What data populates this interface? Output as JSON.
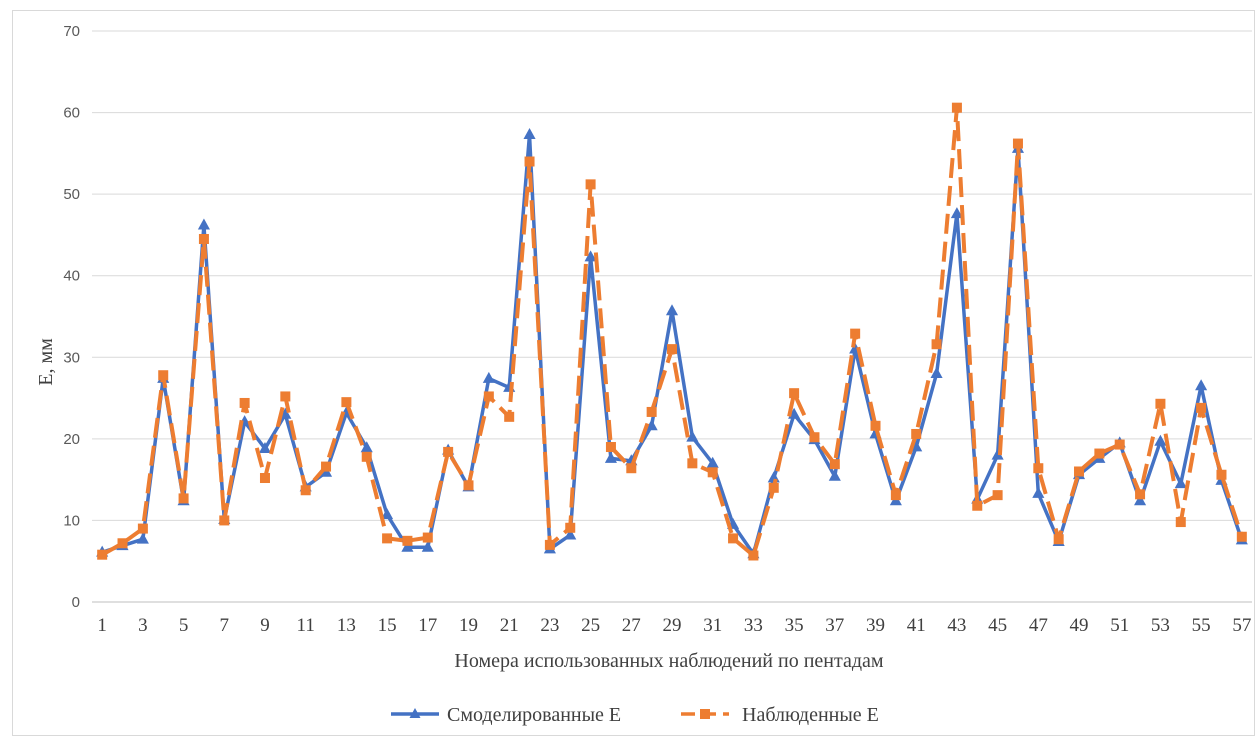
{
  "chart_data": {
    "type": "line",
    "title": "",
    "xlabel": "Номера использованных наблюдений по пентадам",
    "ylabel": "E, мм",
    "ylim": [
      0,
      70
    ],
    "yticks": [
      0,
      10,
      20,
      30,
      40,
      50,
      60,
      70
    ],
    "xticks": [
      1,
      3,
      5,
      7,
      9,
      11,
      13,
      15,
      17,
      19,
      21,
      23,
      25,
      27,
      29,
      31,
      33,
      35,
      37,
      39,
      41,
      43,
      45,
      47,
      49,
      51,
      53,
      55,
      57
    ],
    "grid": "horizontal",
    "legend_position": "bottom",
    "x": [
      1,
      2,
      3,
      4,
      5,
      6,
      7,
      8,
      9,
      10,
      11,
      12,
      13,
      14,
      15,
      16,
      17,
      18,
      19,
      20,
      21,
      22,
      23,
      24,
      25,
      26,
      27,
      28,
      29,
      30,
      31,
      32,
      33,
      34,
      35,
      36,
      37,
      38,
      39,
      40,
      41,
      42,
      43,
      44,
      45,
      46,
      47,
      48,
      49,
      50,
      51,
      52,
      53,
      54,
      55,
      56,
      57
    ],
    "series": [
      {
        "name": "Смоделированные E",
        "color": "#4472c4",
        "marker": "triangle",
        "dash": "solid",
        "values": [
          6.1,
          6.9,
          7.7,
          27.4,
          12.4,
          46.2,
          10.1,
          22.1,
          18.8,
          23.0,
          14.1,
          15.9,
          23.2,
          18.9,
          10.7,
          6.7,
          6.7,
          18.6,
          14.1,
          27.4,
          26.3,
          57.3,
          6.5,
          8.2,
          42.3,
          17.6,
          17.3,
          21.6,
          35.7,
          20.2,
          17.0,
          9.5,
          5.9,
          15.2,
          23.0,
          19.9,
          15.4,
          31.0,
          20.6,
          12.4,
          19.0,
          28.0,
          47.6,
          12.6,
          18.0,
          55.6,
          13.3,
          7.4,
          15.6,
          17.6,
          19.5,
          12.4,
          19.7,
          14.5,
          26.5,
          14.9,
          7.6
        ]
      },
      {
        "name": "Наблюденные E",
        "color": "#ed7d31",
        "marker": "square",
        "dash": "dashed",
        "values": [
          5.8,
          7.2,
          9.0,
          27.8,
          12.7,
          44.5,
          10.0,
          24.4,
          15.2,
          25.2,
          13.7,
          16.6,
          24.5,
          17.8,
          7.8,
          7.5,
          7.9,
          18.4,
          14.3,
          25.2,
          22.7,
          54.0,
          7.0,
          9.1,
          51.2,
          19.0,
          16.4,
          23.3,
          31.0,
          17.0,
          15.9,
          7.8,
          5.7,
          14.0,
          25.6,
          20.2,
          16.9,
          32.9,
          21.6,
          13.1,
          20.6,
          31.6,
          60.6,
          11.8,
          13.1,
          56.2,
          16.4,
          7.7,
          16.0,
          18.2,
          19.3,
          13.2,
          24.3,
          9.8,
          23.8,
          15.6,
          8.0
        ]
      }
    ]
  }
}
